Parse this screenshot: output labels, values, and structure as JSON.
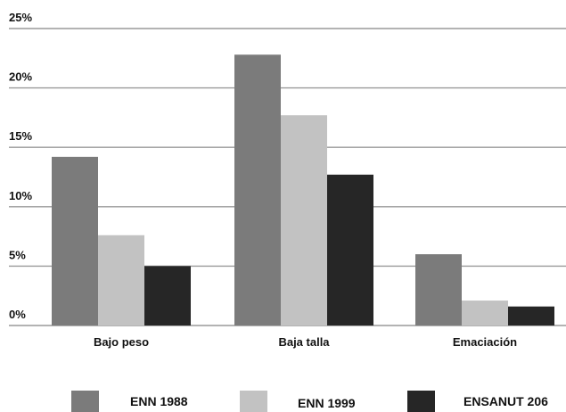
{
  "chart_data": {
    "type": "bar",
    "title": "",
    "xlabel": "",
    "ylabel": "",
    "categories": [
      "Bajo peso",
      "Baja talla",
      "Emaciación"
    ],
    "series": [
      {
        "name": "ENN 1988",
        "color": "#7b7b7b",
        "values": [
          14.2,
          22.8,
          6.0
        ]
      },
      {
        "name": "ENN 1999",
        "color": "#c2c2c2",
        "values": [
          7.6,
          17.7,
          2.1
        ]
      },
      {
        "name": "ENSANUT 206",
        "color": "#262626",
        "values": [
          5.0,
          12.7,
          1.6
        ]
      }
    ],
    "yticks": [
      0,
      5,
      10,
      15,
      20,
      25
    ],
    "ytick_labels": [
      "0%",
      "5%",
      "10%",
      "15%",
      "20%",
      "25%"
    ],
    "ylim": [
      0,
      25
    ],
    "grid": true,
    "legend_position": "bottom"
  }
}
